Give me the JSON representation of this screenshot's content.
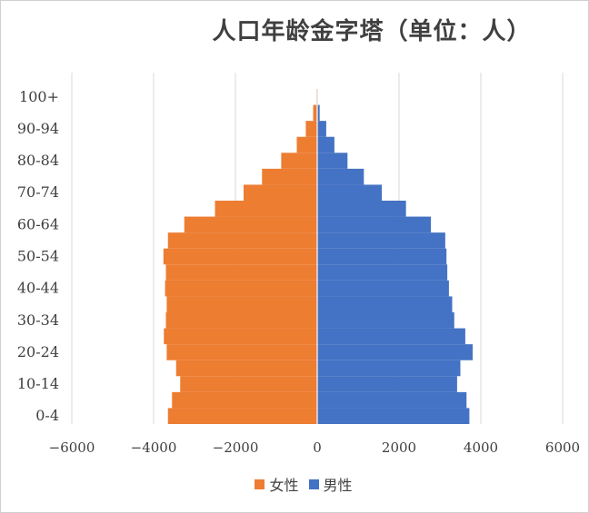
{
  "chart_data": {
    "type": "bar",
    "orientation": "horizontal",
    "title": "人口年龄金字塔（单位：人）",
    "age_labels_shown": [
      "100+",
      "90-94",
      "80-84",
      "70-74",
      "60-64",
      "50-54",
      "40-44",
      "30-34",
      "20-24",
      "10-14",
      "0-4"
    ],
    "xlim": [
      -6000,
      6000
    ],
    "xticks": [
      -6000,
      -4000,
      -2000,
      0,
      2000,
      4000,
      6000
    ],
    "x_tick_labels": [
      "−6000",
      "−4000",
      "−2000",
      "0",
      "2000",
      "4000",
      "6000"
    ],
    "grid": "vertical",
    "legend_position": "bottom",
    "series": [
      {
        "name": "女性",
        "color": "#ed7d31",
        "values": [
          3650,
          3550,
          3350,
          3450,
          3680,
          3750,
          3700,
          3680,
          3720,
          3700,
          3760,
          3650,
          3250,
          2500,
          1800,
          1350,
          880,
          500,
          280,
          100,
          20
        ]
      },
      {
        "name": "男性",
        "color": "#4472c4",
        "values": [
          3720,
          3650,
          3420,
          3500,
          3800,
          3620,
          3350,
          3300,
          3220,
          3180,
          3160,
          3130,
          2780,
          2170,
          1580,
          1140,
          740,
          420,
          220,
          60,
          15
        ]
      }
    ]
  }
}
